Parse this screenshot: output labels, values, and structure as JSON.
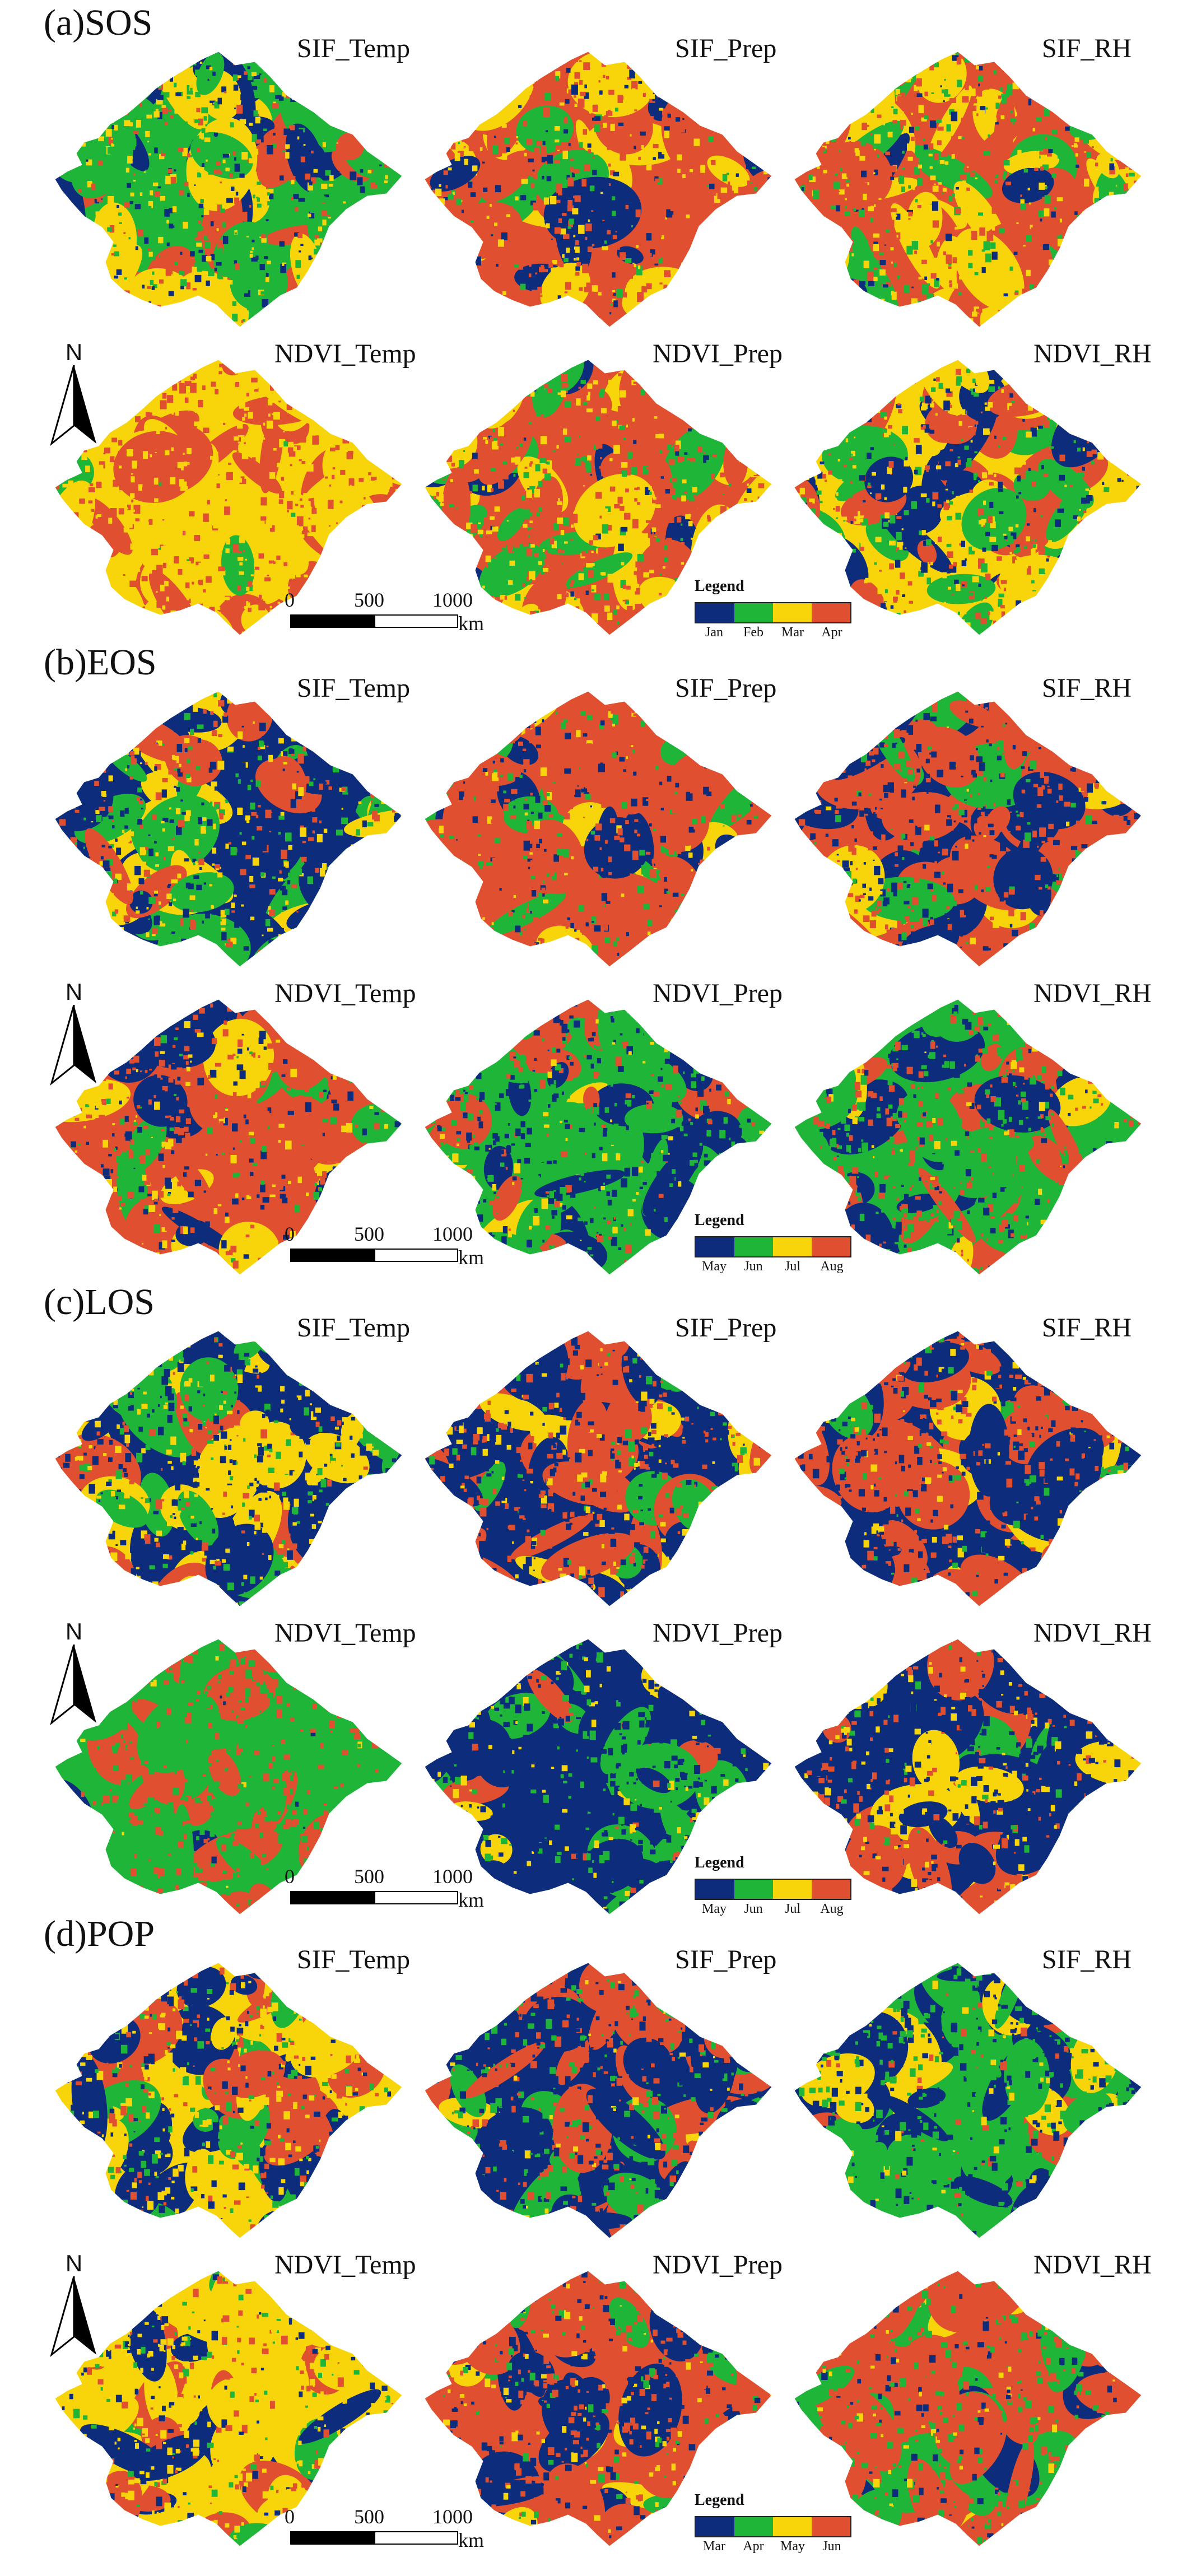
{
  "colors": {
    "navy": "#0d2d7c",
    "green": "#1fb539",
    "yellow": "#f7d50a",
    "red": "#e04f2f"
  },
  "panels": [
    {
      "label": "(a)SOS",
      "maps": [
        {
          "title": "SIF_Temp",
          "mix": [
            0.22,
            0.3,
            0.28,
            0.2
          ],
          "seed": 11
        },
        {
          "title": "SIF_Prep",
          "mix": [
            0.18,
            0.1,
            0.22,
            0.5
          ],
          "seed": 12
        },
        {
          "title": "SIF_RH",
          "mix": [
            0.1,
            0.26,
            0.3,
            0.34
          ],
          "seed": 13
        },
        {
          "title": "NDVI_Temp",
          "mix": [
            0.0,
            0.02,
            0.55,
            0.43
          ],
          "seed": 14
        },
        {
          "title": "NDVI_Prep",
          "mix": [
            0.04,
            0.22,
            0.3,
            0.44
          ],
          "seed": 15
        },
        {
          "title": "NDVI_RH",
          "mix": [
            0.2,
            0.22,
            0.32,
            0.26
          ],
          "seed": 16
        }
      ],
      "legend": {
        "title": "Legend",
        "labels": [
          "Jan",
          "Feb",
          "Mar",
          "Apr"
        ]
      },
      "scale": {
        "ticks": [
          "0",
          "500",
          "1000"
        ],
        "unit": "km"
      }
    },
    {
      "label": "(b)EOS",
      "maps": [
        {
          "title": "SIF_Temp",
          "mix": [
            0.3,
            0.2,
            0.26,
            0.24
          ],
          "seed": 21
        },
        {
          "title": "SIF_Prep",
          "mix": [
            0.2,
            0.16,
            0.08,
            0.56
          ],
          "seed": 22
        },
        {
          "title": "SIF_RH",
          "mix": [
            0.38,
            0.1,
            0.04,
            0.48
          ],
          "seed": 23
        },
        {
          "title": "NDVI_Temp",
          "mix": [
            0.22,
            0.1,
            0.14,
            0.54
          ],
          "seed": 24
        },
        {
          "title": "NDVI_Prep",
          "mix": [
            0.34,
            0.4,
            0.12,
            0.14
          ],
          "seed": 25
        },
        {
          "title": "NDVI_RH",
          "mix": [
            0.16,
            0.4,
            0.06,
            0.38
          ],
          "seed": 26
        }
      ],
      "legend": {
        "title": "Legend",
        "labels": [
          "May",
          "Jun",
          "Jul",
          "Aug"
        ]
      },
      "scale": {
        "ticks": [
          "0",
          "500",
          "1000"
        ],
        "unit": "km"
      }
    },
    {
      "label": "(c)LOS",
      "maps": [
        {
          "title": "SIF_Temp",
          "mix": [
            0.36,
            0.22,
            0.3,
            0.12
          ],
          "seed": 31
        },
        {
          "title": "SIF_Prep",
          "mix": [
            0.4,
            0.08,
            0.14,
            0.38
          ],
          "seed": 32
        },
        {
          "title": "SIF_RH",
          "mix": [
            0.42,
            0.1,
            0.1,
            0.38
          ],
          "seed": 33
        },
        {
          "title": "NDVI_Temp",
          "mix": [
            0.02,
            0.62,
            0.02,
            0.34
          ],
          "seed": 34
        },
        {
          "title": "NDVI_Prep",
          "mix": [
            0.66,
            0.2,
            0.1,
            0.04
          ],
          "seed": 35
        },
        {
          "title": "NDVI_RH",
          "mix": [
            0.46,
            0.08,
            0.2,
            0.26
          ],
          "seed": 36
        }
      ],
      "legend": {
        "title": "Legend",
        "labels": [
          "May",
          "Jun",
          "Jul",
          "Aug"
        ]
      },
      "scale": {
        "ticks": [
          "0",
          "500",
          "1000"
        ],
        "unit": "km"
      }
    },
    {
      "label": "(d)POP",
      "maps": [
        {
          "title": "SIF_Temp",
          "mix": [
            0.2,
            0.22,
            0.34,
            0.24
          ],
          "seed": 41
        },
        {
          "title": "SIF_Prep",
          "mix": [
            0.38,
            0.26,
            0.06,
            0.3
          ],
          "seed": 42
        },
        {
          "title": "SIF_RH",
          "mix": [
            0.4,
            0.46,
            0.08,
            0.06
          ],
          "seed": 43
        },
        {
          "title": "NDVI_Temp",
          "mix": [
            0.14,
            0.14,
            0.56,
            0.16
          ],
          "seed": 44
        },
        {
          "title": "NDVI_Prep",
          "mix": [
            0.24,
            0.14,
            0.14,
            0.48
          ],
          "seed": 45
        },
        {
          "title": "NDVI_RH",
          "mix": [
            0.12,
            0.36,
            0.06,
            0.46
          ],
          "seed": 46
        }
      ],
      "legend": {
        "title": "Legend",
        "labels": [
          "Mar",
          "Apr",
          "May",
          "Jun"
        ]
      },
      "scale": {
        "ticks": [
          "0",
          "500",
          "1000"
        ],
        "unit": "km"
      }
    }
  ],
  "north_arrow": {
    "letter": "N",
    "icon": "north-arrow-icon"
  }
}
